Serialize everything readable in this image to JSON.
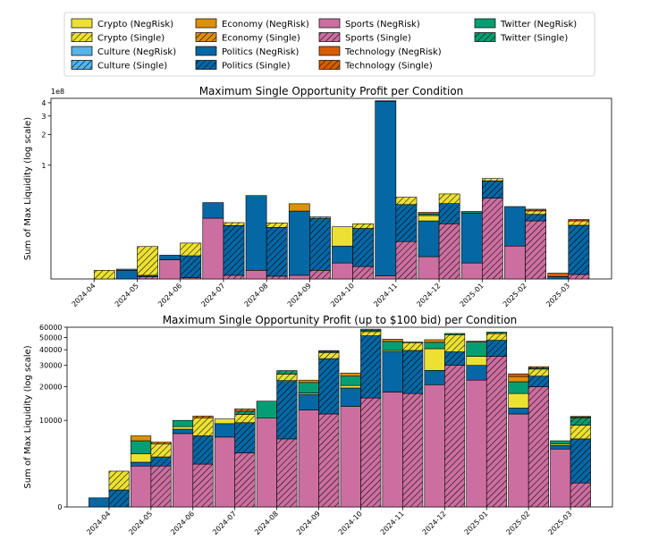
{
  "legend": [
    {
      "label": "Crypto (NegRisk)",
      "cat": "Crypto",
      "hatch": false
    },
    {
      "label": "Crypto (Single)",
      "cat": "Crypto",
      "hatch": true
    },
    {
      "label": "Culture (NegRisk)",
      "cat": "Culture",
      "hatch": false
    },
    {
      "label": "Culture (Single)",
      "cat": "Culture",
      "hatch": true
    },
    {
      "label": "Economy (NegRisk)",
      "cat": "Economy",
      "hatch": false
    },
    {
      "label": "Economy (Single)",
      "cat": "Economy",
      "hatch": true
    },
    {
      "label": "Politics (NegRisk)",
      "cat": "Politics",
      "hatch": false
    },
    {
      "label": "Politics (Single)",
      "cat": "Politics",
      "hatch": true
    },
    {
      "label": "Sports (NegRisk)",
      "cat": "Sports",
      "hatch": false
    },
    {
      "label": "Sports (Single)",
      "cat": "Sports",
      "hatch": true
    },
    {
      "label": "Technology (NegRisk)",
      "cat": "Technology",
      "hatch": false
    },
    {
      "label": "Technology (Single)",
      "cat": "Technology",
      "hatch": true
    },
    {
      "label": "Twitter (NegRisk)",
      "cat": "Twitter",
      "hatch": false
    },
    {
      "label": "Twitter (Single)",
      "cat": "Twitter",
      "hatch": true
    }
  ],
  "colors": {
    "Sports": "#cc6fa0",
    "Politics": "#0567a4",
    "Crypto": "#ece133",
    "Twitter": "#059e73",
    "Economy": "#de8f0b",
    "Technology": "#d55e00",
    "Culture": "#56b4e9"
  },
  "stack_order": [
    "Sports",
    "Politics",
    "Crypto",
    "Twitter",
    "Economy",
    "Technology",
    "Culture"
  ],
  "chart_data": [
    {
      "type": "bar",
      "title": "Maximum Single Opportunity Profit per Condition",
      "ylabel": "Sum of Max Liquidity (log scale)",
      "scale_note": "1e8",
      "categories": [
        "2024-04",
        "2024-05",
        "2024-06",
        "2024-07",
        "2024-08",
        "2024-09",
        "2024-10",
        "2024-11",
        "2024-12",
        "2025-01",
        "2025-02",
        "2025-03"
      ],
      "yticks": [
        {
          "label": "1",
          "value": 1
        },
        {
          "label": "2",
          "value": 2
        },
        {
          "label": "3",
          "value": 3
        },
        {
          "label": "4",
          "value": 4
        }
      ],
      "y_log_transform": {
        "floor": 0,
        "offset": 0.1,
        "ymax": 4.4
      },
      "series": [
        {
          "name": "Sports (NegRisk)",
          "cat": "Sports",
          "hatch": false,
          "values": [
            0,
            0,
            0.05,
            0.26,
            0.02,
            0.008,
            0.04,
            0.007,
            0.06,
            0.04,
            0.1,
            0
          ]
        },
        {
          "name": "Politics (NegRisk)",
          "cat": "Politics",
          "hatch": false,
          "values": [
            0,
            0.02,
            0.015,
            0.14,
            0.46,
            0.31,
            0.06,
            4.15,
            0.18,
            0.26,
            0.26,
            0.005
          ]
        },
        {
          "name": "Crypto (NegRisk)",
          "cat": "Crypto",
          "hatch": false,
          "values": [
            0,
            0,
            0,
            0,
            0,
            0,
            0.1,
            0,
            0.04,
            0,
            0,
            0
          ]
        },
        {
          "name": "Twitter (NegRisk)",
          "cat": "Twitter",
          "hatch": false,
          "values": [
            0,
            0,
            0,
            0,
            0,
            0,
            0,
            0,
            0.012,
            0.015,
            0,
            0
          ]
        },
        {
          "name": "Economy (NegRisk)",
          "cat": "Economy",
          "hatch": false,
          "values": [
            0,
            0,
            0,
            0,
            0,
            0.07,
            0,
            0,
            0,
            0,
            0,
            0
          ]
        },
        {
          "name": "Technology (NegRisk)",
          "cat": "Technology",
          "hatch": false,
          "values": [
            0,
            0.003,
            0,
            0,
            0,
            0,
            0,
            0.02,
            0.015,
            0,
            0,
            0.008
          ]
        },
        {
          "name": "Culture (NegRisk)",
          "cat": "Culture",
          "hatch": false,
          "values": [
            0,
            0,
            0,
            0,
            0,
            0,
            0,
            0,
            0,
            0,
            0,
            0
          ]
        },
        {
          "name": "Sports (Single)",
          "cat": "Sports",
          "hatch": true,
          "values": [
            0,
            0.005,
            0.003,
            0.008,
            0.006,
            0.02,
            0.03,
            0.12,
            0.22,
            0.45,
            0.24,
            0.01
          ]
        },
        {
          "name": "Politics (Single)",
          "cat": "Politics",
          "hatch": true,
          "values": [
            0,
            0.003,
            0.06,
            0.2,
            0.19,
            0.24,
            0.16,
            0.26,
            0.17,
            0.24,
            0.05,
            0.2
          ]
        },
        {
          "name": "Crypto (Single)",
          "cat": "Crypto",
          "hatch": true,
          "values": [
            0.02,
            0.09,
            0.05,
            0.02,
            0.03,
            0.01,
            0.03,
            0.08,
            0.11,
            0.04,
            0.03,
            0.03
          ]
        },
        {
          "name": "Twitter (Single)",
          "cat": "Twitter",
          "hatch": true,
          "values": [
            0,
            0,
            0,
            0,
            0,
            0,
            0,
            0,
            0,
            0,
            0,
            0
          ]
        },
        {
          "name": "Economy (Single)",
          "cat": "Economy",
          "hatch": true,
          "values": [
            0,
            0,
            0,
            0,
            0,
            0,
            0,
            0,
            0,
            0,
            0,
            0
          ]
        },
        {
          "name": "Technology (Single)",
          "cat": "Technology",
          "hatch": true,
          "values": [
            0,
            0,
            0,
            0,
            0,
            0,
            0,
            0,
            0,
            0,
            0.015,
            0.01
          ]
        },
        {
          "name": "Culture (Single)",
          "cat": "Culture",
          "hatch": true,
          "values": [
            0,
            0,
            0,
            0,
            0,
            0,
            0,
            0,
            0,
            0,
            0,
            0
          ]
        }
      ]
    },
    {
      "type": "bar",
      "title": "Maximum Single Opportunity Profit (up to $100 bid) per Condition",
      "ylabel": "Sum of Max Liquidity (log scale)",
      "scale_note": "",
      "categories": [
        "2024-04",
        "2024-05",
        "2024-06",
        "2024-07",
        "2024-08",
        "2024-09",
        "2024-10",
        "2024-11",
        "2024-12",
        "2025-01",
        "2025-02",
        "2025-03"
      ],
      "yticks": [
        {
          "label": "0",
          "value": 0
        },
        {
          "label": "10000",
          "value": 10000
        },
        {
          "label": "20000",
          "value": 20000
        },
        {
          "label": "30000",
          "value": 30000
        },
        {
          "label": "40000",
          "value": 40000
        },
        {
          "label": "50000",
          "value": 50000
        },
        {
          "label": "60000",
          "value": 60000
        }
      ],
      "y_log_transform": {
        "floor": 0,
        "offset": 3000,
        "ymax": 60000
      },
      "series": [
        {
          "name": "Sports (NegRisk)",
          "cat": "Sports",
          "hatch": false,
          "values": [
            0,
            3000,
            7400,
            6800,
            10500,
            12500,
            13500,
            18000,
            20800,
            22700,
            11500,
            5000
          ]
        },
        {
          "name": "Politics (NegRisk)",
          "cat": "Politics",
          "hatch": false,
          "values": [
            500,
            400,
            800,
            2500,
            0,
            4700,
            6000,
            20500,
            6500,
            7300,
            1500,
            500
          ]
        },
        {
          "name": "Crypto (NegRisk)",
          "cat": "Crypto",
          "hatch": false,
          "values": [
            0,
            1000,
            500,
            1000,
            0,
            500,
            1000,
            1000,
            13500,
            5500,
            4500,
            200
          ]
        },
        {
          "name": "Twitter (NegRisk)",
          "cat": "Twitter",
          "hatch": false,
          "values": [
            0,
            1800,
            1300,
            0,
            4500,
            4000,
            4000,
            7000,
            5000,
            10500,
            4500,
            500
          ]
        },
        {
          "name": "Economy (NegRisk)",
          "cat": "Economy",
          "hatch": false,
          "values": [
            0,
            800,
            0,
            0,
            0,
            1000,
            1500,
            2000,
            2200,
            700,
            2300,
            0
          ]
        },
        {
          "name": "Technology (NegRisk)",
          "cat": "Technology",
          "hatch": false,
          "values": [
            0,
            0,
            0,
            0,
            0,
            0,
            0,
            0,
            0,
            0,
            1300,
            0
          ]
        },
        {
          "name": "Culture (NegRisk)",
          "cat": "Culture",
          "hatch": false,
          "values": [
            0,
            0,
            0,
            0,
            0,
            0,
            0,
            0,
            0,
            0,
            0,
            0
          ]
        },
        {
          "name": "Sports (Single)",
          "cat": "Sports",
          "hatch": true,
          "values": [
            0,
            3000,
            3200,
            4500,
            6500,
            11500,
            16000,
            17500,
            30000,
            35500,
            20000,
            1500
          ]
        },
        {
          "name": "Politics (Single)",
          "cat": "Politics",
          "hatch": true,
          "values": [
            1000,
            1000,
            3800,
            5000,
            16000,
            22500,
            35500,
            22000,
            8500,
            12000,
            4500,
            5000
          ]
        },
        {
          "name": "Crypto (Single)",
          "cat": "Crypto",
          "hatch": true,
          "values": [
            1500,
            1700,
            3500,
            1900,
            3000,
            4000,
            4000,
            6000,
            14000,
            6000,
            3500,
            2500
          ]
        },
        {
          "name": "Twitter (Single)",
          "cat": "Twitter",
          "hatch": true,
          "values": [
            0,
            0,
            0,
            800,
            1700,
            1000,
            1500,
            500,
            1200,
            1500,
            500,
            1500
          ]
        },
        {
          "name": "Economy (Single)",
          "cat": "Economy",
          "hatch": true,
          "values": [
            0,
            300,
            500,
            600,
            0,
            300,
            1000,
            0,
            0,
            0,
            800,
            200
          ]
        },
        {
          "name": "Technology (Single)",
          "cat": "Technology",
          "hatch": true,
          "values": [
            0,
            0,
            0,
            0,
            0,
            0,
            0,
            0,
            0,
            0,
            0,
            200
          ]
        },
        {
          "name": "Culture (Single)",
          "cat": "Culture",
          "hatch": true,
          "values": [
            0,
            0,
            0,
            0,
            0,
            0,
            0,
            0,
            0,
            0,
            0,
            0
          ]
        }
      ]
    }
  ]
}
